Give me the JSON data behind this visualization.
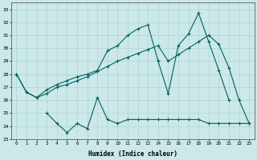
{
  "xlabel": "Humidex (Indice chaleur)",
  "bg_color": "#cce8e8",
  "line_color": "#006060",
  "grid_color": "#aad4d4",
  "xlim": [
    -0.5,
    23.5
  ],
  "ylim": [
    23,
    33.5
  ],
  "yticks": [
    23,
    24,
    25,
    26,
    27,
    28,
    29,
    30,
    31,
    32,
    33
  ],
  "xticks": [
    0,
    1,
    2,
    3,
    4,
    5,
    6,
    7,
    8,
    9,
    10,
    11,
    12,
    13,
    14,
    15,
    16,
    17,
    18,
    19,
    20,
    21,
    22,
    23
  ],
  "line1_x": [
    0,
    1,
    2,
    3,
    4,
    5,
    6,
    7,
    8,
    9,
    10,
    11,
    12,
    13,
    14,
    15,
    16,
    17,
    18,
    19,
    20,
    21,
    22,
    23
  ],
  "line1_y": [
    28,
    26.6,
    26.2,
    26.5,
    27.0,
    27.2,
    27.5,
    27.8,
    28.2,
    28.6,
    29.0,
    29.3,
    29.6,
    29.9,
    30.2,
    29.0,
    29.5,
    30.0,
    30.5,
    31.0,
    30.3,
    28.5,
    26.0,
    24.2
  ],
  "line2_x": [
    0,
    1,
    2,
    3,
    4,
    5,
    6,
    7,
    8,
    9,
    10,
    11,
    12,
    13,
    14,
    15,
    16,
    17,
    18,
    19,
    20,
    21
  ],
  "line2_y": [
    28,
    26.6,
    26.2,
    26.8,
    27.2,
    27.5,
    27.8,
    28.0,
    28.3,
    29.8,
    30.2,
    31.0,
    31.5,
    31.8,
    29.0,
    26.5,
    30.2,
    31.1,
    32.7,
    30.5,
    28.3,
    26.0
  ],
  "line3_x": [
    3,
    4,
    5,
    6,
    7,
    8,
    9,
    10,
    11,
    12,
    13,
    14,
    15,
    16,
    17,
    18,
    19,
    20,
    21,
    22,
    23
  ],
  "line3_y": [
    25.0,
    24.2,
    23.5,
    24.2,
    23.8,
    26.2,
    24.5,
    24.2,
    24.5,
    24.5,
    24.5,
    24.5,
    24.5,
    24.5,
    24.5,
    24.5,
    24.2,
    24.2,
    24.2,
    24.2,
    24.2
  ]
}
